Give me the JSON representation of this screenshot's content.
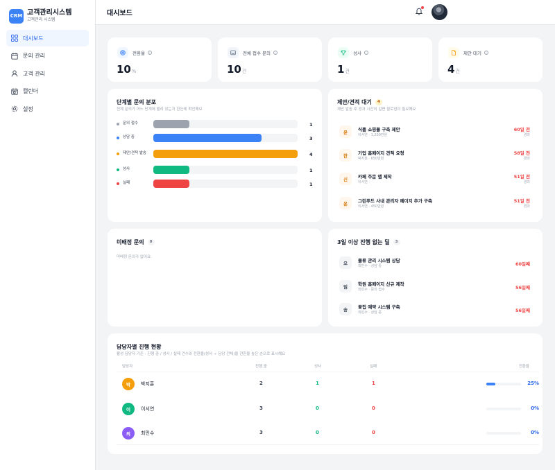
{
  "colors": {
    "accent": "#3b82f6",
    "danger": "#ef4444",
    "success": "#10b981",
    "warning": "#f59e0b",
    "neutral": "#9ca3af"
  },
  "brand": {
    "logo": "CRM",
    "title": "고객관리시스템",
    "subtitle": "고객관리 시스템"
  },
  "sidebar": {
    "items": [
      {
        "label": "대시보드",
        "icon": "grid-icon",
        "active": true
      },
      {
        "label": "문의 관리",
        "icon": "calendar-icon",
        "active": false
      },
      {
        "label": "고객 관리",
        "icon": "user-icon",
        "active": false
      },
      {
        "label": "캘린더",
        "icon": "calendar-icon",
        "active": false
      },
      {
        "label": "설정",
        "icon": "gear-icon",
        "active": false
      }
    ]
  },
  "header": {
    "title": "대시보드",
    "has_notification": true
  },
  "stats": [
    {
      "label": "전환율",
      "value": "10",
      "unit": "%",
      "icon": "target-icon",
      "color": "#3b82f6"
    },
    {
      "label": "전체 접수 문의",
      "value": "10",
      "unit": "건",
      "icon": "inbox-icon",
      "color": "#64748b"
    },
    {
      "label": "성사",
      "value": "1",
      "unit": "건",
      "icon": "trophy-icon",
      "color": "#10b981"
    },
    {
      "label": "제안 대기",
      "value": "4",
      "unit": "건",
      "icon": "document-icon",
      "color": "#f59e0b"
    }
  ],
  "distribution": {
    "title": "단계별 문의 분포",
    "subtitle": "전체 문의가 어느 단계에 몰려 있는지 한눈에 확인해요",
    "max": 4,
    "rows": [
      {
        "label": "문의 접수",
        "value": 1,
        "color": "#9ca3af"
      },
      {
        "label": "상담 중",
        "value": 3,
        "color": "#3b82f6"
      },
      {
        "label": "제안/견적 발송",
        "value": 4,
        "color": "#f59e0b"
      },
      {
        "label": "성사",
        "value": 1,
        "color": "#10b981"
      },
      {
        "label": "실패",
        "value": 1,
        "color": "#ef4444"
      }
    ]
  },
  "proposals": {
    "title": "제안/견적 대기",
    "count": "4",
    "subtitle": "제안 발송 후 경과 시간이 길면 팔로업이 필요해요",
    "items": [
      {
        "initial": "윤",
        "title": "식품 쇼핑몰 구축 제안",
        "meta": "이서연 · 1,200만원",
        "days": "60일 전",
        "elapsed": "경과"
      },
      {
        "initial": "한",
        "title": "기업 홈페이지 견적 요청",
        "meta": "박지훈 · 650만원",
        "days": "58일 전",
        "elapsed": "경과"
      },
      {
        "initial": "신",
        "title": "카페 주문 앱 제작",
        "meta": "이서연 ·",
        "days": "51일 전",
        "elapsed": "경과"
      },
      {
        "initial": "윤",
        "title": "그린푸드 사내 관리자 페이지 추가 구축",
        "meta": "이서연 · 450만원",
        "days": "51일 전",
        "elapsed": "경과"
      }
    ]
  },
  "unassigned": {
    "title": "미배정 문의",
    "count": "0",
    "empty": "미배정 문의가 없어요."
  },
  "stuck": {
    "title": "3일 이상 진행 없는 딜",
    "count": "3",
    "items": [
      {
        "initial": "오",
        "title": "물류 관리 시스템 상담",
        "meta": "최민수 · 상담 중",
        "days": "60일째"
      },
      {
        "initial": "임",
        "title": "학원 홈페이지 신규 제작",
        "meta": "최민수 · 문의 접수",
        "days": "56일째"
      },
      {
        "initial": "송",
        "title": "꽃집 예약 시스템 구축",
        "meta": "최민수 · 상담 중",
        "days": "56일째"
      }
    ]
  },
  "assignees": {
    "title": "담당자별 진행 현황",
    "subtitle": "활성 담당자 기준 · 진행 중 / 성사 / 실패 건수와 전환율(성사 ÷ 담당 전체)을 전환율 높은 순으로 표시해요",
    "headers": {
      "name": "담당자",
      "active": "진행 중",
      "won": "성사",
      "lost": "실패",
      "rate": "전환율"
    },
    "rows": [
      {
        "initial": "박",
        "name": "박지훈",
        "active": "2",
        "won": "1",
        "lost": "1",
        "rate": "25%",
        "rate_value": 0.25,
        "color": "#f59e0b"
      },
      {
        "initial": "이",
        "name": "이서연",
        "active": "3",
        "won": "0",
        "lost": "0",
        "rate": "0%",
        "rate_value": 0,
        "color": "#10b981"
      },
      {
        "initial": "최",
        "name": "최민수",
        "active": "3",
        "won": "0",
        "lost": "0",
        "rate": "0%",
        "rate_value": 0,
        "color": "#8b5cf6"
      }
    ]
  }
}
